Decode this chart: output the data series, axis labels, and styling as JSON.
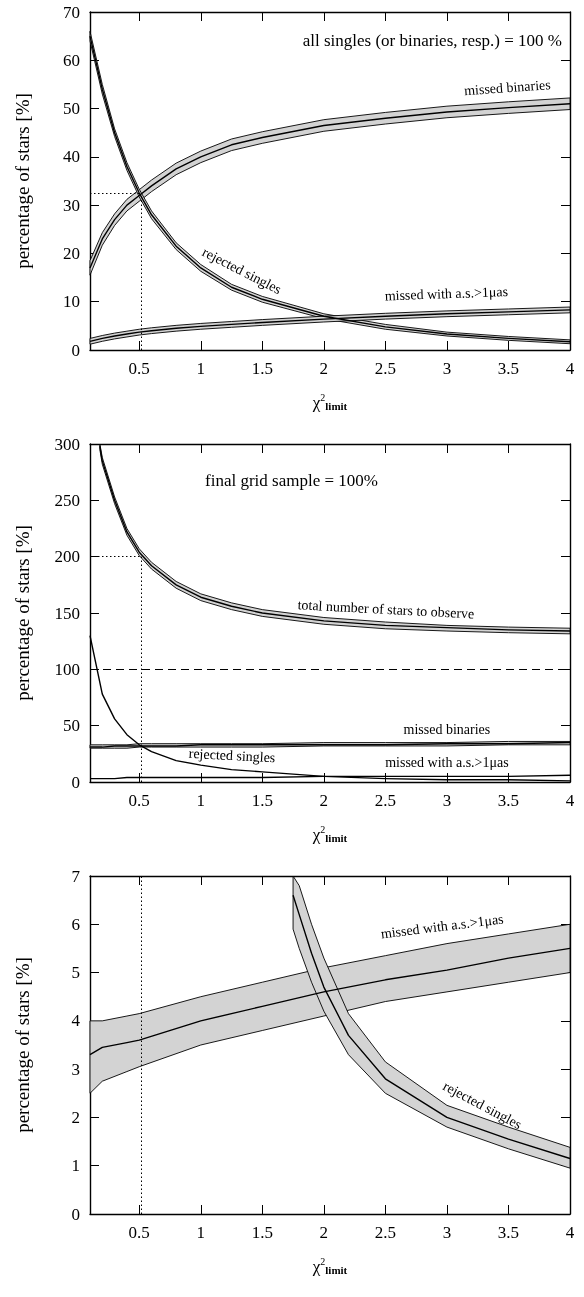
{
  "chart_data": [
    {
      "type": "line",
      "xlabel": "χ$^{2}$$_{limit}$",
      "ylabel": "percentage of stars [%]",
      "annotations": [
        "all singles (or binaries, resp.) = 100 %"
      ],
      "xlim": [
        0.1,
        4
      ],
      "xticks": [
        0.5,
        1,
        1.5,
        2,
        2.5,
        3,
        3.5,
        4
      ],
      "ylim": [
        0,
        70
      ],
      "yticks": [
        0,
        10,
        20,
        30,
        40,
        50,
        60,
        70
      ],
      "marker": "none",
      "ref_lines": [
        {
          "axis": "x",
          "value": 0.52,
          "line_style": "dotted"
        },
        {
          "axis": "y",
          "value": 32.5,
          "line_style": "dotted"
        }
      ],
      "series": [
        {
          "name": "missed binaries",
          "color": "#000000",
          "x": [
            0.1,
            0.2,
            0.3,
            0.4,
            0.5,
            0.6,
            0.8,
            1,
            1.25,
            1.5,
            2,
            2.5,
            3,
            3.5,
            4
          ],
          "values": [
            17,
            23,
            27,
            30,
            32,
            34,
            37.5,
            40,
            42.5,
            44,
            46.5,
            48,
            49.3,
            50.2,
            51
          ],
          "lower": [
            15.5,
            21.7,
            25.8,
            28.8,
            30.8,
            32.8,
            36.3,
            38.8,
            41.3,
            42.8,
            45.3,
            46.8,
            48.1,
            49,
            49.8
          ],
          "upper": [
            18.5,
            24.3,
            28.2,
            31.2,
            33.2,
            35.2,
            38.7,
            41.2,
            43.7,
            45.2,
            47.7,
            49.2,
            50.5,
            51.4,
            52.2
          ]
        },
        {
          "name": "rejected singles",
          "color": "#000000",
          "x": [
            0.1,
            0.2,
            0.3,
            0.4,
            0.5,
            0.6,
            0.8,
            1,
            1.25,
            1.5,
            2,
            2.5,
            3,
            3.5,
            4
          ],
          "values": [
            65,
            54,
            45,
            38,
            32.5,
            28,
            21.5,
            17,
            13,
            10.5,
            7,
            4.8,
            3.3,
            2.4,
            1.7
          ],
          "lower": [
            64,
            53,
            44.2,
            37.2,
            31.7,
            27.2,
            20.8,
            16.3,
            12.4,
            9.9,
            6.5,
            4.3,
            2.9,
            2,
            1.3
          ],
          "upper": [
            66,
            55,
            45.8,
            38.8,
            33.3,
            28.8,
            22.2,
            17.7,
            13.6,
            11.1,
            7.5,
            5.3,
            3.7,
            2.8,
            2.1
          ]
        },
        {
          "name": "missed with a.s.>1μas",
          "color": "#000000",
          "x": [
            0.1,
            0.2,
            0.3,
            0.4,
            0.5,
            0.6,
            0.8,
            1,
            1.25,
            1.5,
            2,
            2.5,
            3,
            3.5,
            4
          ],
          "values": [
            1.8,
            2.4,
            2.9,
            3.3,
            3.7,
            4,
            4.5,
            4.9,
            5.3,
            5.7,
            6.4,
            7,
            7.5,
            7.9,
            8.3
          ],
          "lower": [
            1.2,
            1.8,
            2.3,
            2.7,
            3.1,
            3.4,
            3.9,
            4.3,
            4.7,
            5.1,
            5.8,
            6.4,
            6.9,
            7.3,
            7.7
          ],
          "upper": [
            2.4,
            3,
            3.5,
            3.9,
            4.3,
            4.6,
            5.1,
            5.5,
            5.9,
            6.3,
            7,
            7.6,
            8.1,
            8.5,
            8.9
          ]
        }
      ]
    },
    {
      "type": "line",
      "xlabel": "χ$^{2}$$_{limit}$",
      "ylabel": "percentage of stars [%]",
      "annotations": [
        "final grid sample = 100%"
      ],
      "xlim": [
        0.1,
        4
      ],
      "xticks": [
        0.5,
        1,
        1.5,
        2,
        2.5,
        3,
        3.5,
        4
      ],
      "ylim": [
        0,
        300
      ],
      "yticks": [
        0,
        50,
        100,
        150,
        200,
        250,
        300
      ],
      "marker": "none",
      "ref_lines": [
        {
          "axis": "x",
          "value": 0.52,
          "line_style": "dotted"
        },
        {
          "axis": "y",
          "value": 200,
          "line_style": "dotted"
        },
        {
          "axis": "y",
          "value": 100,
          "line_style": "dashed"
        }
      ],
      "series": [
        {
          "name": "total number of stars to observe",
          "color": "#000000",
          "x": [
            0.18,
            0.2,
            0.3,
            0.4,
            0.5,
            0.6,
            0.8,
            1,
            1.25,
            1.5,
            2,
            2.5,
            3,
            3.5,
            4
          ],
          "values": [
            298,
            285,
            250,
            222,
            204,
            192,
            175,
            164,
            156,
            150,
            143,
            139,
            137,
            135,
            134
          ],
          "lower": [
            295,
            282,
            247,
            219,
            201,
            189,
            172,
            161,
            153,
            147,
            140,
            136,
            134,
            132.5,
            131.5
          ],
          "upper": [
            300,
            288,
            253,
            225,
            207,
            195,
            178,
            167,
            159,
            153,
            146,
            142,
            139,
            137.5,
            136.5
          ]
        },
        {
          "name": "missed binaries",
          "color": "#000000",
          "x": [
            0.1,
            0.2,
            0.3,
            0.4,
            0.5,
            0.6,
            0.8,
            1,
            1.25,
            1.5,
            2,
            2.5,
            3,
            3.5,
            4
          ],
          "values": [
            31,
            31,
            32,
            32,
            32,
            32,
            32,
            33,
            33,
            33,
            33,
            33,
            34,
            34,
            35
          ],
          "lower": [
            30,
            30,
            30,
            30,
            31,
            31,
            31,
            31,
            31,
            31,
            32,
            32,
            32,
            33,
            33
          ],
          "upper": [
            33,
            33,
            33,
            33,
            34,
            34,
            34,
            34,
            34,
            34,
            35,
            35,
            35,
            36,
            36
          ]
        },
        {
          "name": "rejected singles",
          "color": "#000000",
          "x": [
            0.1,
            0.2,
            0.3,
            0.4,
            0.5,
            0.6,
            0.8,
            1,
            1.25,
            1.5,
            2,
            2.5,
            3,
            3.5,
            4
          ],
          "values": [
            130,
            78,
            56,
            42,
            33,
            27,
            19,
            15,
            11,
            9,
            5,
            3,
            2,
            2,
            1
          ]
        },
        {
          "name": "missed with a.s.>1μas",
          "color": "#000000",
          "x": [
            0.1,
            0.2,
            0.3,
            0.4,
            0.5,
            0.6,
            0.8,
            1,
            1.25,
            1.5,
            2,
            2.5,
            3,
            3.5,
            4
          ],
          "values": [
            3,
            3,
            3,
            4,
            4,
            4,
            4,
            4,
            4,
            4,
            5,
            5,
            5,
            5,
            6
          ]
        }
      ]
    },
    {
      "type": "line",
      "xlabel": "χ$^{2}$$_{limit}$",
      "ylabel": "percentage of stars [%]",
      "xlim": [
        0.1,
        4
      ],
      "xticks": [
        0.5,
        1,
        1.5,
        2,
        2.5,
        3,
        3.5,
        4
      ],
      "ylim": [
        0,
        7
      ],
      "yticks": [
        0,
        1,
        2,
        3,
        4,
        5,
        6,
        7
      ],
      "marker": "none",
      "ref_lines": [
        {
          "axis": "x",
          "value": 0.52,
          "line_style": "dotted"
        }
      ],
      "series": [
        {
          "name": "missed with a.s.>1μas",
          "color": "#000000",
          "x": [
            0.1,
            0.2,
            0.4,
            0.5,
            1,
            1.5,
            2,
            2.5,
            3,
            3.5,
            4
          ],
          "values": [
            3.3,
            3.45,
            3.55,
            3.6,
            4,
            4.3,
            4.6,
            4.85,
            5.05,
            5.3,
            5.5
          ],
          "lower": [
            2.5,
            2.75,
            2.95,
            3.05,
            3.5,
            3.8,
            4.1,
            4.4,
            4.6,
            4.8,
            5
          ],
          "upper": [
            4,
            4,
            4.1,
            4.15,
            4.5,
            4.8,
            5.1,
            5.35,
            5.6,
            5.8,
            6
          ]
        },
        {
          "name": "rejected singles",
          "color": "#000000",
          "x": [
            1.75,
            1.8,
            1.9,
            2,
            2.2,
            2.5,
            3,
            3.5,
            4
          ],
          "values": [
            6.6,
            6.2,
            5.4,
            4.7,
            3.7,
            2.8,
            2,
            1.55,
            1.15
          ],
          "lower": [
            5.9,
            5.5,
            4.8,
            4.2,
            3.3,
            2.5,
            1.8,
            1.35,
            0.95
          ],
          "upper": [
            7,
            6.8,
            6,
            5.3,
            4.15,
            3.15,
            2.25,
            1.8,
            1.38
          ]
        }
      ]
    }
  ]
}
